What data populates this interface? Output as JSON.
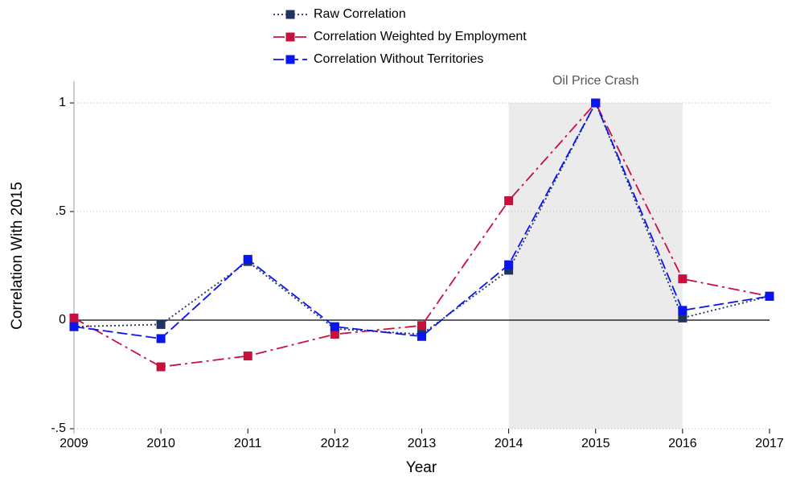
{
  "chart_data": {
    "type": "line",
    "x_label": "Year",
    "y_label": "Correlation With 2015",
    "x": [
      2009,
      2010,
      2011,
      2012,
      2013,
      2014,
      2015,
      2016,
      2017
    ],
    "xlim": [
      2009,
      2017
    ],
    "xticks": [
      2009,
      2010,
      2011,
      2012,
      2013,
      2014,
      2015,
      2016,
      2017
    ],
    "ylim": [
      -0.5,
      1.1
    ],
    "yticks": [
      {
        "value": -0.5,
        "label": "-.5"
      },
      0,
      {
        "value": 0.5,
        "label": ".5"
      },
      1
    ],
    "grid": true,
    "hline": 0,
    "shade": {
      "x": [
        2014,
        2016
      ],
      "y": [
        -0.5,
        1
      ],
      "label": "Oil Price Crash",
      "color": "#ebebeb"
    },
    "legend": "top",
    "series": [
      {
        "name": "Raw Correlation",
        "color": "#1f3461",
        "dash": "dotted",
        "values": [
          -0.03,
          -0.02,
          0.27,
          -0.04,
          -0.065,
          0.23,
          1.0,
          0.01,
          0.11
        ]
      },
      {
        "name": "Correlation Weighted by Employment",
        "color": "#c8103e",
        "dash": "dash-dot",
        "values": [
          0.01,
          -0.215,
          -0.165,
          -0.065,
          -0.025,
          0.55,
          1.0,
          0.19,
          0.11
        ]
      },
      {
        "name": "Correlation Without Territories",
        "color": "#0a14f0",
        "dash": "dashed",
        "values": [
          -0.03,
          -0.085,
          0.28,
          -0.03,
          -0.075,
          0.255,
          1.0,
          0.045,
          0.11
        ]
      }
    ]
  }
}
